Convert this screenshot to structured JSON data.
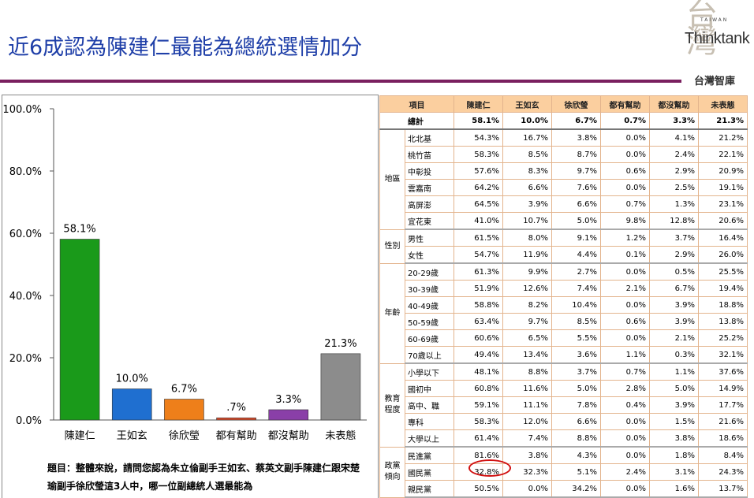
{
  "title": "近6成認為陳建仁最能為總統選情加分",
  "logo": {
    "seal": "台灣",
    "taiwan": "TAIWAN",
    "name": "Thinktank",
    "zh": "台灣智庫"
  },
  "question": "題目：整體來說，請問您認為朱立倫副手王如玄、蔡英文副手陳建仁跟宋楚瑜副手徐欣瑩這3人中，哪一位副總統人選最能為",
  "chart_data": {
    "type": "bar",
    "categories": [
      "陳建仁",
      "王如玄",
      "徐欣瑩",
      "都有幫助",
      "都沒幫助",
      "未表態"
    ],
    "values": [
      58.1,
      10.0,
      6.7,
      0.7,
      3.3,
      21.3
    ],
    "value_labels": [
      "58.1%",
      "10.0%",
      "6.7%",
      ".7%",
      "3.3%",
      "21.3%"
    ],
    "colors": [
      "#1a9a1a",
      "#1f6fd0",
      "#ee7f1a",
      "#d94b2a",
      "#8a3fa8",
      "#8c8c8c"
    ],
    "ylim": [
      0,
      100
    ],
    "yticks": [
      "0.0%",
      "20.0%",
      "40.0%",
      "60.0%",
      "80.0%",
      "100.0%"
    ],
    "grid": false
  },
  "table": {
    "headers": [
      "項目",
      "陳建仁",
      "王如玄",
      "徐欣瑩",
      "都有幫助",
      "都沒幫助",
      "未表態"
    ],
    "total": {
      "label": "總計",
      "values": [
        "58.1%",
        "10.0%",
        "6.7%",
        "0.7%",
        "3.3%",
        "21.3%"
      ]
    },
    "groups": [
      {
        "name": "地區",
        "rows": [
          {
            "label": "北北基",
            "values": [
              "54.3%",
              "16.7%",
              "3.8%",
              "0.0%",
              "4.1%",
              "21.2%"
            ]
          },
          {
            "label": "桃竹苗",
            "values": [
              "58.3%",
              "8.5%",
              "8.7%",
              "0.0%",
              "2.4%",
              "22.1%"
            ]
          },
          {
            "label": "中彰投",
            "values": [
              "57.6%",
              "8.3%",
              "9.7%",
              "0.6%",
              "2.9%",
              "20.9%"
            ]
          },
          {
            "label": "雲嘉南",
            "values": [
              "64.2%",
              "6.6%",
              "7.6%",
              "0.0%",
              "2.5%",
              "19.1%"
            ]
          },
          {
            "label": "高屏澎",
            "values": [
              "64.5%",
              "3.9%",
              "6.6%",
              "0.7%",
              "1.3%",
              "23.1%"
            ]
          },
          {
            "label": "宜花東",
            "values": [
              "41.0%",
              "10.7%",
              "5.0%",
              "9.8%",
              "12.8%",
              "20.6%"
            ]
          }
        ]
      },
      {
        "name": "性別",
        "rows": [
          {
            "label": "男性",
            "values": [
              "61.5%",
              "8.0%",
              "9.1%",
              "1.2%",
              "3.7%",
              "16.4%"
            ]
          },
          {
            "label": "女性",
            "values": [
              "54.7%",
              "11.9%",
              "4.4%",
              "0.1%",
              "2.9%",
              "26.0%"
            ]
          }
        ]
      },
      {
        "name": "年齡",
        "rows": [
          {
            "label": "20-29歲",
            "values": [
              "61.3%",
              "9.9%",
              "2.7%",
              "0.0%",
              "0.5%",
              "25.5%"
            ]
          },
          {
            "label": "30-39歲",
            "values": [
              "51.9%",
              "12.6%",
              "7.4%",
              "2.1%",
              "6.7%",
              "19.4%"
            ]
          },
          {
            "label": "40-49歲",
            "values": [
              "58.8%",
              "8.2%",
              "10.4%",
              "0.0%",
              "3.9%",
              "18.8%"
            ]
          },
          {
            "label": "50-59歲",
            "values": [
              "63.4%",
              "9.7%",
              "8.5%",
              "0.6%",
              "3.9%",
              "13.8%"
            ]
          },
          {
            "label": "60-69歲",
            "values": [
              "60.6%",
              "6.5%",
              "5.5%",
              "0.0%",
              "2.1%",
              "25.2%"
            ]
          },
          {
            "label": "70歲以上",
            "values": [
              "49.4%",
              "13.4%",
              "3.6%",
              "1.1%",
              "0.3%",
              "32.1%"
            ]
          }
        ]
      },
      {
        "name": "教育程度",
        "rows": [
          {
            "label": "小學以下",
            "values": [
              "48.1%",
              "8.8%",
              "3.7%",
              "0.7%",
              "1.1%",
              "37.6%"
            ]
          },
          {
            "label": "國初中",
            "values": [
              "60.8%",
              "11.6%",
              "5.0%",
              "2.8%",
              "5.0%",
              "14.9%"
            ]
          },
          {
            "label": "高中、職",
            "values": [
              "59.1%",
              "11.1%",
              "7.8%",
              "0.4%",
              "3.9%",
              "17.7%"
            ]
          },
          {
            "label": "專科",
            "values": [
              "58.3%",
              "12.0%",
              "6.6%",
              "0.0%",
              "1.5%",
              "21.6%"
            ]
          },
          {
            "label": "大學以上",
            "values": [
              "61.4%",
              "7.4%",
              "8.8%",
              "0.0%",
              "3.8%",
              "18.6%"
            ]
          }
        ]
      },
      {
        "name": "政黨傾向",
        "rows": [
          {
            "label": "民進黨",
            "values": [
              "81.6%",
              "3.8%",
              "4.3%",
              "0.0%",
              "1.8%",
              "8.4%"
            ]
          },
          {
            "label": "國民黨",
            "values": [
              "32.8%",
              "32.3%",
              "5.1%",
              "2.4%",
              "3.1%",
              "24.3%"
            ]
          },
          {
            "label": "親民黨",
            "values": [
              "50.5%",
              "0.0%",
              "34.2%",
              "0.0%",
              "1.6%",
              "13.7%"
            ]
          }
        ]
      }
    ]
  }
}
